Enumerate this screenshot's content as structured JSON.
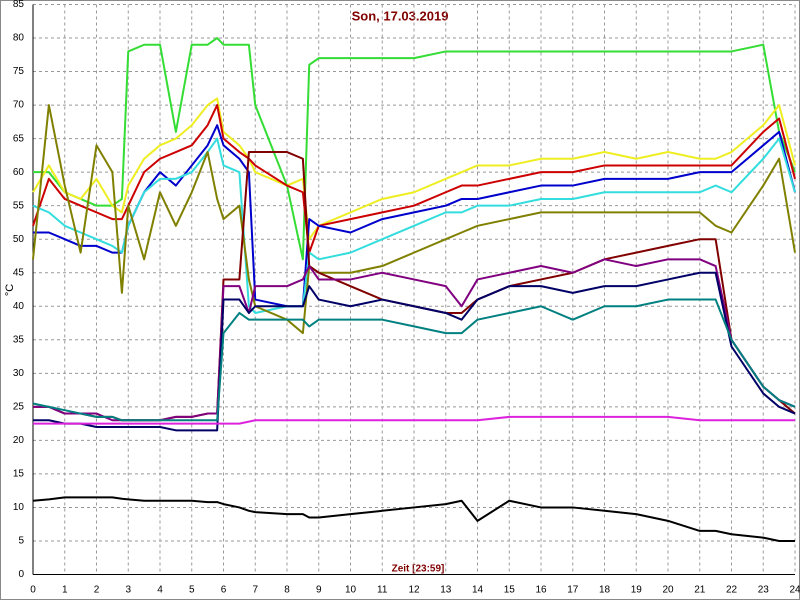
{
  "chart_data": {
    "type": "line",
    "title": "Son, 17.03.2019",
    "x_label": "Zeit [23:59]",
    "y_label": "°C",
    "x": [
      0,
      0.5,
      1,
      1.5,
      2,
      2.5,
      2.8,
      3,
      3.5,
      4,
      4.5,
      5,
      5.5,
      5.8,
      6,
      6.5,
      6.8,
      7,
      8,
      8.5,
      8.7,
      9,
      10,
      11,
      12,
      13,
      13.5,
      14,
      15,
      16,
      17,
      18,
      19,
      20,
      21,
      21.5,
      22,
      23,
      23.5,
      24
    ],
    "xlim": [
      0,
      24
    ],
    "xticks": [
      0,
      1,
      2,
      3,
      4,
      5,
      6,
      7,
      8,
      9,
      10,
      11,
      12,
      13,
      14,
      15,
      16,
      17,
      18,
      19,
      20,
      21,
      22,
      23,
      24
    ],
    "ylim": [
      0,
      85
    ],
    "yticks": [
      0,
      5,
      10,
      15,
      20,
      25,
      30,
      35,
      40,
      45,
      50,
      55,
      60,
      65,
      70,
      75,
      80,
      85
    ],
    "grid": true,
    "series": [
      {
        "color": "#33dd33",
        "values": [
          60,
          60,
          57,
          56,
          55,
          55,
          56,
          78,
          79,
          79,
          66,
          79,
          79,
          80,
          79,
          79,
          79,
          70,
          58,
          47,
          76,
          77,
          77,
          77,
          77,
          78,
          78,
          78,
          78,
          78,
          78,
          78,
          78,
          78,
          78,
          78,
          78,
          79,
          66,
          60
        ]
      },
      {
        "color": "#eeee22",
        "values": [
          57,
          61,
          57,
          56,
          59,
          55,
          54,
          58,
          62,
          64,
          65,
          67,
          70,
          71,
          66,
          64,
          62,
          60,
          58,
          59,
          50,
          52,
          54,
          56,
          57,
          59,
          60,
          61,
          61,
          62,
          62,
          63,
          62,
          63,
          62,
          62,
          63,
          67,
          70,
          61
        ]
      },
      {
        "color": "#cc0000",
        "values": [
          52,
          59,
          56,
          55,
          54,
          53,
          53,
          55,
          60,
          62,
          63,
          64,
          67,
          70,
          65,
          63,
          62,
          61,
          58,
          57,
          48,
          52,
          53,
          54,
          55,
          57,
          58,
          58,
          59,
          60,
          60,
          61,
          61,
          61,
          61,
          61,
          61,
          66,
          68,
          59
        ]
      },
      {
        "color": "#0000cc",
        "values": [
          51,
          51,
          50,
          49,
          49,
          48,
          48,
          52,
          57,
          60,
          58,
          61,
          64,
          67,
          64,
          62,
          60,
          41,
          40,
          40,
          53,
          52,
          51,
          53,
          54,
          55,
          56,
          56,
          57,
          58,
          58,
          59,
          59,
          59,
          60,
          60,
          60,
          64,
          66,
          57
        ]
      },
      {
        "color": "#33dddd",
        "values": [
          55,
          54,
          52,
          51,
          50,
          49,
          48,
          52,
          57,
          59,
          59,
          60,
          63,
          65,
          61,
          60,
          40,
          39,
          40,
          40,
          48,
          47,
          48,
          50,
          52,
          54,
          54,
          55,
          55,
          56,
          56,
          57,
          57,
          57,
          57,
          58,
          57,
          62,
          65,
          57
        ]
      },
      {
        "color": "#808000",
        "values": [
          47,
          70,
          58,
          48,
          64,
          60,
          42,
          55,
          47,
          57,
          52,
          57,
          63,
          56,
          53,
          55,
          44,
          40,
          38,
          36,
          46,
          45,
          45,
          46,
          48,
          50,
          51,
          52,
          53,
          54,
          54,
          54,
          54,
          54,
          54,
          52,
          51,
          58,
          62,
          48
        ]
      },
      {
        "color": "#800000",
        "values": [
          25,
          25,
          24,
          24,
          23.5,
          23.5,
          23,
          23,
          23,
          23,
          23.5,
          23.5,
          24,
          24,
          44,
          44,
          63,
          63,
          63,
          62,
          46,
          45,
          43,
          41,
          40,
          39,
          39,
          41,
          43,
          44,
          45,
          47,
          48,
          49,
          50,
          50,
          35,
          28,
          26,
          24
        ]
      },
      {
        "color": "#800080",
        "values": [
          25,
          25,
          24,
          24,
          24,
          23,
          23,
          23,
          23,
          23,
          23.5,
          23.5,
          24,
          24,
          43,
          43,
          39,
          43,
          43,
          44,
          46,
          44,
          44,
          45,
          44,
          43,
          40,
          44,
          45,
          46,
          45,
          47,
          46,
          47,
          47,
          46,
          35,
          28,
          26,
          25
        ]
      },
      {
        "color": "#000066",
        "values": [
          23,
          23,
          22.5,
          22.5,
          22,
          22,
          22,
          22,
          22,
          22,
          21.5,
          21.5,
          21.5,
          21.5,
          41,
          41,
          39,
          40,
          40,
          40,
          43,
          41,
          40,
          41,
          40,
          39,
          38,
          41,
          43,
          43,
          42,
          43,
          43,
          44,
          45,
          45,
          34,
          27,
          25,
          24
        ]
      },
      {
        "color": "#008080",
        "values": [
          25.5,
          25,
          24.5,
          24,
          23.5,
          23.5,
          23,
          23,
          23,
          23,
          23,
          23,
          23,
          23,
          36,
          39,
          38,
          38,
          38,
          38,
          37,
          38,
          38,
          38,
          37,
          36,
          36,
          38,
          39,
          40,
          38,
          40,
          40,
          41,
          41,
          41,
          35,
          28,
          26,
          25
        ]
      },
      {
        "color": "#dd22dd",
        "values": [
          22.5,
          22.5,
          22.5,
          22.5,
          22.5,
          22.5,
          22.5,
          22.5,
          22.5,
          22.5,
          22.5,
          22.5,
          22.5,
          22.5,
          22.5,
          22.5,
          22.8,
          23,
          23,
          23,
          23,
          23,
          23,
          23,
          23,
          23,
          23,
          23,
          23.5,
          23.5,
          23.5,
          23.5,
          23.5,
          23.5,
          23,
          23,
          23,
          23,
          23,
          23
        ]
      },
      {
        "color": "#000000",
        "values": [
          11,
          11.2,
          11.5,
          11.5,
          11.5,
          11.5,
          11.3,
          11.2,
          11,
          11,
          11,
          11,
          10.8,
          10.8,
          10.5,
          10,
          9.5,
          9.3,
          9,
          9,
          8.5,
          8.5,
          9,
          9.5,
          10,
          10.5,
          11,
          8,
          11,
          10,
          10,
          9.5,
          9,
          8,
          6.5,
          6.5,
          6,
          5.5,
          5,
          5
        ]
      }
    ]
  }
}
